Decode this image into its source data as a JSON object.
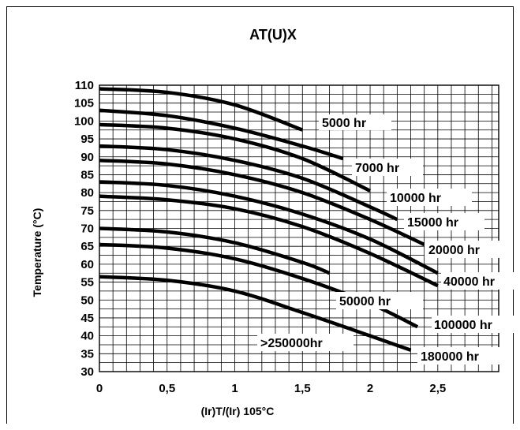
{
  "chart_data": {
    "type": "line",
    "title": "AT(U)X",
    "xlabel": "(Ir)T/(Ir) 105°C",
    "ylabel": "Temperature (°C)",
    "xlim": [
      0,
      2.95
    ],
    "ylim": [
      30,
      110
    ],
    "x_ticks": [
      "0",
      "0,5",
      "1",
      "1,5",
      "2",
      "2,5"
    ],
    "y_ticks": [
      "30",
      "35",
      "40",
      "45",
      "50",
      "55",
      "60",
      "65",
      "70",
      "75",
      "80",
      "85",
      "90",
      "95",
      "100",
      "105",
      "110"
    ],
    "grid": true,
    "series": [
      {
        "name": "5000 hr",
        "points": [
          [
            0,
            109
          ],
          [
            0.5,
            108
          ],
          [
            1,
            104.5
          ],
          [
            1.5,
            97.5
          ]
        ]
      },
      {
        "name": "7000 hr",
        "points": [
          [
            0,
            103
          ],
          [
            0.5,
            101.5
          ],
          [
            1,
            98
          ],
          [
            1.5,
            93
          ],
          [
            1.8,
            89.5
          ]
        ]
      },
      {
        "name": "10000 hr",
        "points": [
          [
            0,
            99
          ],
          [
            0.5,
            98
          ],
          [
            1,
            95
          ],
          [
            1.5,
            89.5
          ],
          [
            2,
            80.5
          ]
        ]
      },
      {
        "name": "15000 hr",
        "points": [
          [
            0,
            93
          ],
          [
            0.5,
            92
          ],
          [
            1,
            89
          ],
          [
            1.5,
            84
          ],
          [
            2,
            76
          ],
          [
            2.2,
            72.5
          ]
        ]
      },
      {
        "name": "20000 hr",
        "points": [
          [
            0,
            89
          ],
          [
            0.5,
            88
          ],
          [
            1,
            85
          ],
          [
            1.5,
            80
          ],
          [
            2,
            72.5
          ],
          [
            2.4,
            65.5
          ]
        ]
      },
      {
        "name": "40000 hr",
        "points": [
          [
            0,
            83
          ],
          [
            0.5,
            82
          ],
          [
            1,
            79
          ],
          [
            1.5,
            74
          ],
          [
            2,
            67
          ],
          [
            2.5,
            57.5
          ]
        ]
      },
      {
        "name": "50000 hr",
        "points": [
          [
            0,
            79
          ],
          [
            0.5,
            78
          ],
          [
            1,
            75.5
          ],
          [
            1.5,
            70.5
          ],
          [
            2,
            63
          ],
          [
            2.5,
            54
          ]
        ]
      },
      {
        "name": "100000 hr",
        "points": [
          [
            0,
            70
          ],
          [
            0.5,
            69
          ],
          [
            1,
            66
          ],
          [
            1.5,
            60.5
          ],
          [
            1.7,
            57.5
          ]
        ]
      },
      {
        "name": "180000 hr",
        "points": [
          [
            0,
            65.5
          ],
          [
            0.5,
            64.5
          ],
          [
            1,
            61.5
          ],
          [
            1.5,
            56
          ],
          [
            2,
            49
          ],
          [
            2.35,
            42.5
          ]
        ]
      },
      {
        "name": ">250000hr",
        "points": [
          [
            0,
            56.5
          ],
          [
            0.5,
            55.5
          ],
          [
            1,
            52.5
          ],
          [
            1.5,
            46.5
          ],
          [
            2,
            40
          ],
          [
            2.3,
            36
          ]
        ]
      }
    ],
    "labels": {
      "s5000": "5000 hr",
      "s7000": "7000 hr",
      "s10000": "10000 hr",
      "s15000": "15000 hr",
      "s20000": "20000 hr",
      "s40000": "40000 hr",
      "s50000": "50000 hr",
      "s100000": "100000 hr",
      "s180000": "180000 hr",
      "s250000": ">250000hr"
    }
  }
}
